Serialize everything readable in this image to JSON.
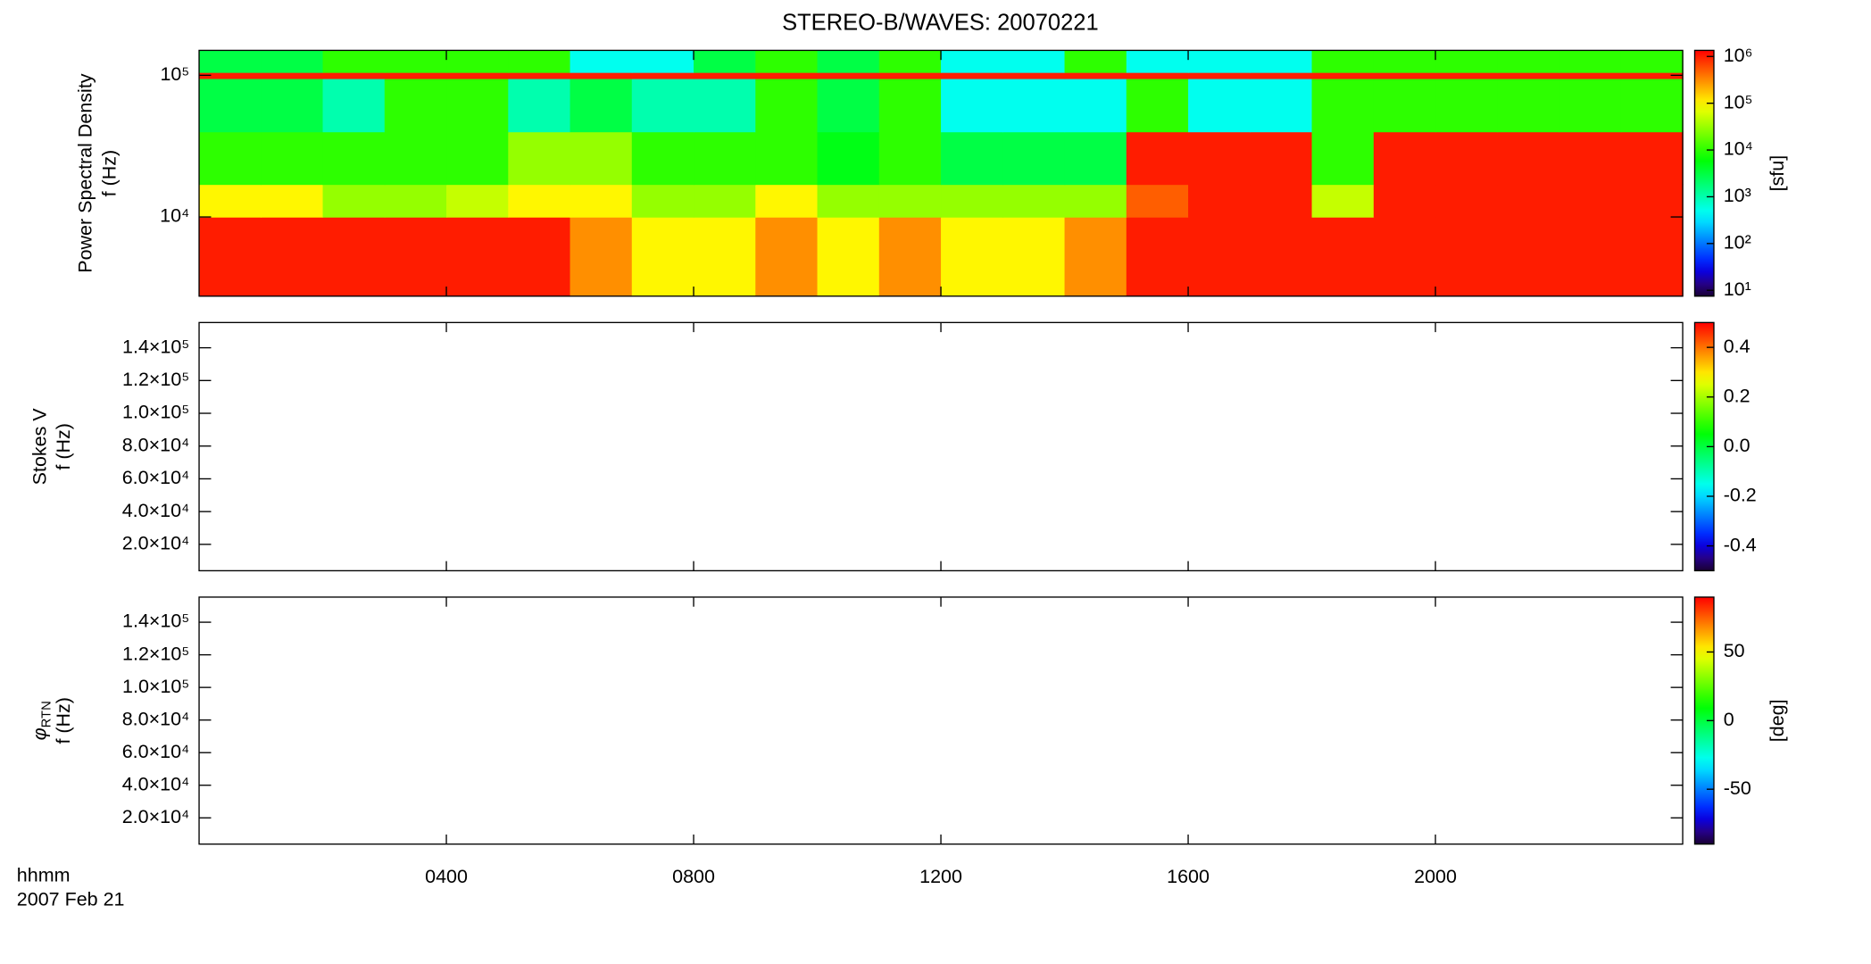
{
  "chart_data": [
    {
      "type": "spectrogram",
      "title": "STEREO-B/WAVES: 20070221",
      "ylabel": [
        "Power Spectral Density",
        "f (Hz)"
      ],
      "xlim": [
        0,
        24
      ],
      "xticks": [
        4,
        8,
        12,
        16,
        20
      ],
      "ylog": true,
      "ylim": [
        2760,
        150000
      ],
      "yticks": [
        {
          "value": 10000,
          "label": "10⁴"
        },
        {
          "value": 100000,
          "label": "10⁵"
        }
      ],
      "time_bins": [
        0,
        1,
        2,
        3,
        4,
        5,
        6,
        7,
        8,
        9,
        10,
        11,
        12,
        13,
        14,
        15,
        16,
        17,
        18,
        19,
        20,
        21,
        22,
        23,
        24
      ],
      "freq_bins": [
        2760,
        10000,
        17000,
        40000,
        95000,
        105000,
        150000
      ],
      "z": [
        [
          1000000,
          1000000,
          1000000,
          1000000,
          1000000,
          1000000,
          300000,
          100000,
          100000,
          300000,
          100000,
          300000,
          100000,
          100000,
          300000,
          1000000,
          1000000,
          1000000,
          1000000,
          1000000,
          1000000,
          1000000,
          1000000,
          1000000
        ],
        [
          100000,
          100000,
          30000,
          30000,
          50000,
          100000,
          100000,
          30000,
          30000,
          100000,
          30000,
          30000,
          30000,
          30000,
          30000,
          500000,
          1000000,
          1000000,
          50000,
          1000000,
          1000000,
          1000000,
          1000000,
          1000000
        ],
        [
          10000,
          10000,
          10000,
          10000,
          10000,
          30000,
          30000,
          10000,
          10000,
          10000,
          5000,
          10000,
          3000,
          3000,
          3000,
          1000000,
          1000000,
          1000000,
          10000,
          1000000,
          1000000,
          1000000,
          1000000,
          1000000
        ],
        [
          3000,
          3000,
          1000,
          10000,
          10000,
          1000,
          3000,
          1000,
          1000,
          10000,
          3000,
          10000,
          500,
          500,
          500,
          10000,
          500,
          500,
          10000,
          10000,
          10000,
          10000,
          10000,
          10000
        ],
        [
          1000000,
          1000000,
          1000000,
          1000000,
          1000000,
          1000000,
          1000000,
          1000000,
          1000000,
          1000000,
          1000000,
          1000000,
          1000000,
          1000000,
          1000000,
          1000000,
          1000000,
          1000000,
          1000000,
          1000000,
          1000000,
          1000000,
          1000000,
          1000000
        ],
        [
          3000,
          3000,
          10000,
          10000,
          10000,
          10000,
          500,
          500,
          3000,
          10000,
          3000,
          10000,
          500,
          500,
          10000,
          500,
          500,
          500,
          10000,
          10000,
          10000,
          10000,
          10000,
          10000
        ]
      ],
      "clog": true,
      "clim": [
        7.5,
        1350000
      ],
      "cticks": [
        {
          "value": 10,
          "label": "10¹"
        },
        {
          "value": 100,
          "label": "10²"
        },
        {
          "value": 1000,
          "label": "10³"
        },
        {
          "value": 10000,
          "label": "10⁴"
        },
        {
          "value": 100000,
          "label": "10⁵"
        },
        {
          "value": 1000000,
          "label": "10⁶"
        }
      ],
      "clabel": "[sfu]"
    },
    {
      "type": "spectrogram",
      "ylabel": [
        "Stokes V",
        "f (Hz)"
      ],
      "xlim": [
        0,
        24
      ],
      "xticks": [
        4,
        8,
        12,
        16,
        20
      ],
      "ylim": [
        3900,
        155400
      ],
      "yticks": [
        {
          "value": 20000,
          "label": "2.0×10⁴"
        },
        {
          "value": 40000,
          "label": "4.0×10⁴"
        },
        {
          "value": 60000,
          "label": "6.0×10⁴"
        },
        {
          "value": 80000,
          "label": "8.0×10⁴"
        },
        {
          "value": 100000,
          "label": "1.0×10⁵"
        },
        {
          "value": 120000,
          "label": "1.2×10⁵"
        },
        {
          "value": 140000,
          "label": "1.4×10⁵"
        }
      ],
      "clim": [
        -0.5,
        0.5
      ],
      "cticks": [
        -0.4,
        -0.2,
        {
          "value": 0,
          "label": "0.0"
        },
        0.2,
        0.4
      ]
    },
    {
      "type": "spectrogram",
      "ylabel_symbol": "φ",
      "ylabel_subscript": "RTN",
      "ylabel": [
        "f (Hz)"
      ],
      "xlim": [
        0,
        24
      ],
      "xticks": [
        {
          "value": 4,
          "label": "0400"
        },
        {
          "value": 8,
          "label": "0800"
        },
        {
          "value": 12,
          "label": "1200"
        },
        {
          "value": 16,
          "label": "1600"
        },
        {
          "value": 20,
          "label": "2000"
        }
      ],
      "xlabel": "hhmm",
      "date": "2007 Feb 21",
      "ylim": [
        3900,
        155400
      ],
      "yticks": [
        {
          "value": 20000,
          "label": "2.0×10⁴"
        },
        {
          "value": 40000,
          "label": "4.0×10⁴"
        },
        {
          "value": 60000,
          "label": "6.0×10⁴"
        },
        {
          "value": 80000,
          "label": "8.0×10⁴"
        },
        {
          "value": 100000,
          "label": "1.0×10⁵"
        },
        {
          "value": 120000,
          "label": "1.2×10⁵"
        },
        {
          "value": 140000,
          "label": "1.4×10⁵"
        }
      ],
      "clim": [
        -90,
        90
      ],
      "cticks": [
        -50,
        0,
        50
      ],
      "clabel": "[deg]"
    }
  ]
}
